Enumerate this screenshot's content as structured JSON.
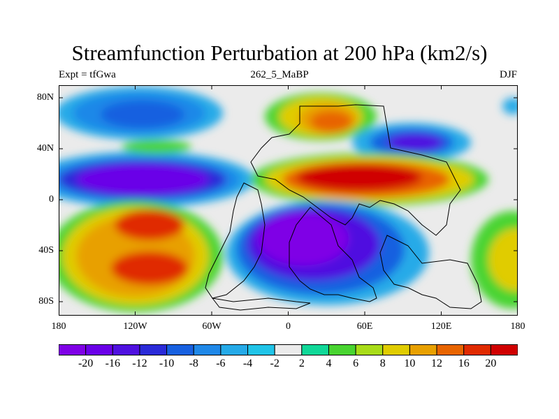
{
  "title": "Streamfunction Perturbation at 200 hPa (km2/s)",
  "subtitle_left": "Expt = tfGwa",
  "subtitle_center": "262_5_MaBP",
  "subtitle_right": "DJF",
  "y_ticks": [
    "80N",
    "40N",
    "0",
    "40S",
    "80S"
  ],
  "x_ticks": [
    "180",
    "120W",
    "60W",
    "0",
    "60E",
    "120E",
    "180"
  ],
  "colorbar": {
    "labels": [
      "-20",
      "-16",
      "-12",
      "-10",
      "-8",
      "-6",
      "-4",
      "-2",
      "2",
      "4",
      "6",
      "8",
      "10",
      "12",
      "16",
      "20"
    ],
    "colors": [
      "#7f00e6",
      "#6a00e8",
      "#4f10e0",
      "#2a2ad8",
      "#1760e0",
      "#1f88e8",
      "#25aae8",
      "#20c4e8",
      "#ebebeb",
      "#10d898",
      "#48d430",
      "#a8dc18",
      "#e0cc00",
      "#e8a000",
      "#e86400",
      "#e02a00",
      "#d00000"
    ]
  },
  "chart_data": {
    "type": "heatmap",
    "title": "Streamfunction Perturbation at 200 hPa (km2/s)",
    "x_range": [
      -180,
      180
    ],
    "y_range": [
      -90,
      90
    ],
    "levels": [
      -20,
      -16,
      -12,
      -10,
      -8,
      -6,
      -4,
      -2,
      2,
      4,
      6,
      8,
      10,
      12,
      16,
      20
    ]
  }
}
